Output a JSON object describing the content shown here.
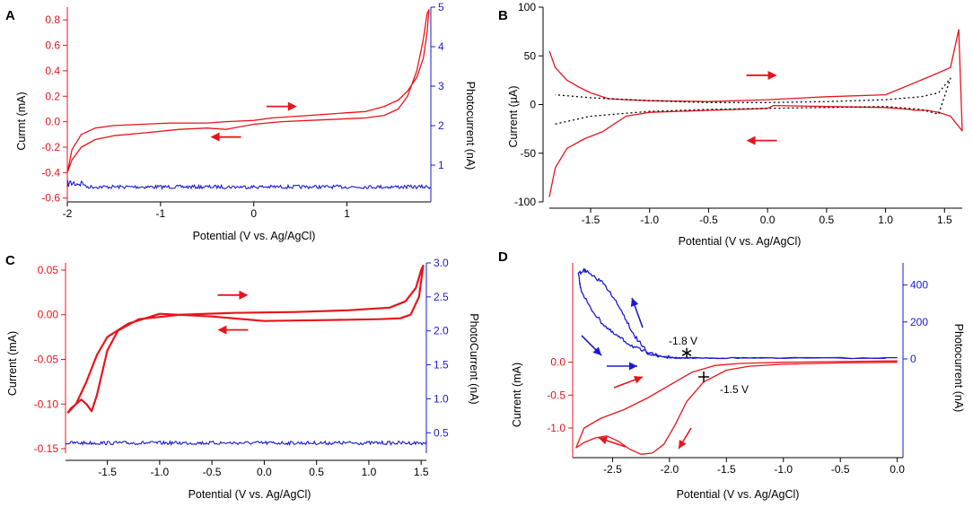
{
  "colors": {
    "red": "#e8141b",
    "blue": "#1a1ad2",
    "black": "#000000"
  },
  "chart_data": [
    {
      "id": "A",
      "type": "line",
      "panel_label": "A",
      "xlabel": "Potential (V vs. Ag/AgCl)",
      "ylabel_left": "Currnt (mA)",
      "ylabel_right": "Photocurrent (nA)",
      "xlim": [
        -2.0,
        1.9
      ],
      "ylim_left": [
        -0.63,
        0.9
      ],
      "ylim_right": [
        0.07,
        5.0
      ],
      "xticks": [
        "-2",
        "-1",
        "0",
        "1"
      ],
      "xtick_values": [
        -2,
        -1,
        0,
        1
      ],
      "yticks_left": [
        "-0.6",
        "-0.4",
        "-0.2",
        "0.0",
        "0.2",
        "0.4",
        "0.6",
        "0.8"
      ],
      "ytick_values_left": [
        -0.6,
        -0.4,
        -0.2,
        0.0,
        0.2,
        0.4,
        0.6,
        0.8
      ],
      "yticks_right": [
        "1",
        "2",
        "3",
        "4",
        "5"
      ],
      "ytick_values_right": [
        1,
        2,
        3,
        4,
        5
      ],
      "series": [
        {
          "name": "Current",
          "axis": "left",
          "color": "red",
          "x": [
            -2.0,
            -1.95,
            -1.85,
            -1.7,
            -1.5,
            -1.2,
            -0.8,
            -0.5,
            -0.3,
            0.0,
            0.3,
            0.6,
            0.9,
            1.2,
            1.4,
            1.55,
            1.65,
            1.75,
            1.82,
            1.86,
            1.88,
            1.86,
            1.82,
            1.75,
            1.65,
            1.55,
            1.4,
            1.3,
            1.2,
            1.0,
            0.6,
            0.2,
            0.0,
            -0.3,
            -0.5,
            -0.7,
            -0.9,
            -1.2,
            -1.5,
            -1.7,
            -1.85,
            -1.95,
            -2.0
          ],
          "y": [
            -0.4,
            -0.3,
            -0.2,
            -0.14,
            -0.11,
            -0.09,
            -0.06,
            -0.05,
            -0.06,
            -0.02,
            0.0,
            0.01,
            0.02,
            0.03,
            0.05,
            0.1,
            0.2,
            0.4,
            0.65,
            0.85,
            0.88,
            0.7,
            0.5,
            0.35,
            0.24,
            0.17,
            0.12,
            0.1,
            0.08,
            0.07,
            0.05,
            0.03,
            0.01,
            0.0,
            -0.01,
            -0.01,
            -0.01,
            -0.02,
            -0.03,
            -0.05,
            -0.1,
            -0.22,
            -0.4
          ]
        },
        {
          "name": "Photocurrent",
          "axis": "right",
          "color": "blue",
          "noise_level": 0.45,
          "baseline_value": 0.45
        }
      ],
      "annotations": [
        {
          "type": "arrow",
          "direction": "right",
          "x": 0.3,
          "y": 0.12
        },
        {
          "type": "arrow",
          "direction": "left",
          "x": -0.3,
          "y": -0.12
        }
      ]
    },
    {
      "id": "B",
      "type": "line",
      "panel_label": "B",
      "xlabel": "Potential (V vs. Ag/AgCl)",
      "ylabel_left": "Current (µA)",
      "xlim": [
        -1.85,
        1.65
      ],
      "ylim_left": [
        -100,
        100
      ],
      "xticks": [
        "-1.5",
        "-1.0",
        "-0.5",
        "0.0",
        "0.5",
        "1.0",
        "1.5"
      ],
      "xtick_values": [
        -1.5,
        -1.0,
        -0.5,
        0.0,
        0.5,
        1.0,
        1.5
      ],
      "yticks_left": [
        "-100",
        "-50",
        "0",
        "50",
        "100"
      ],
      "ytick_values_left": [
        -100,
        -50,
        0,
        50,
        100
      ],
      "series": [
        {
          "name": "CV",
          "axis": "left",
          "color": "red",
          "x": [
            -1.85,
            -1.8,
            -1.7,
            -1.55,
            -1.4,
            -1.2,
            -1.0,
            -0.5,
            0.0,
            0.05,
            0.5,
            1.0,
            1.1,
            1.2,
            1.25,
            1.3,
            1.35,
            1.4,
            1.45,
            1.55,
            1.65,
            1.62,
            1.55,
            1.4,
            1.0,
            0.5,
            0.0,
            -0.5,
            -1.0,
            -1.2,
            -1.35,
            -1.4,
            -1.5,
            -1.6,
            -1.7,
            -1.8,
            -1.85
          ],
          "y": [
            -95,
            -65,
            -45,
            -35,
            -28,
            -12,
            -8,
            -6,
            -4,
            -1,
            -2,
            -3,
            -4,
            -5,
            -6,
            -6,
            -6,
            -7,
            -8,
            -12,
            -27,
            77,
            38,
            30,
            10,
            8,
            5,
            3,
            4,
            5,
            6,
            8,
            12,
            18,
            25,
            38,
            55
          ]
        },
        {
          "name": "Background",
          "axis": "left",
          "color": "black",
          "dashed": true,
          "x": [
            -1.8,
            -1.5,
            -1.0,
            -0.5,
            0.0,
            0.5,
            1.0,
            1.3,
            1.45,
            1.55,
            1.45,
            1.3,
            1.0,
            0.5,
            0.0,
            -0.5,
            -1.0,
            -1.5,
            -1.8
          ],
          "y": [
            -20,
            -12,
            -7,
            -5,
            -4,
            -3,
            -2,
            -5,
            -10,
            27,
            12,
            8,
            5,
            3,
            2,
            2,
            4,
            7,
            10
          ]
        }
      ],
      "annotations": [
        {
          "type": "arrow",
          "direction": "right",
          "x": -0.05,
          "y": 30
        },
        {
          "type": "arrow",
          "direction": "left",
          "x": -0.05,
          "y": -37
        }
      ]
    },
    {
      "id": "C",
      "type": "line",
      "panel_label": "C",
      "xlabel": "Potential (V vs. Ag/AgCl)",
      "ylabel_left": "Current (mA)",
      "ylabel_right": "PhotoCurrent (nA)",
      "xlim": [
        -1.9,
        1.55
      ],
      "ylim_left": [
        -0.155,
        0.058
      ],
      "ylim_right": [
        0.2,
        3.0
      ],
      "xticks": [
        "-1.5",
        "-1.0",
        "-0.5",
        "0.0",
        "0.5",
        "1.0",
        "1.5"
      ],
      "xtick_values": [
        -1.5,
        -1.0,
        -0.5,
        0.0,
        0.5,
        1.0,
        1.5
      ],
      "yticks_left": [
        "-0.15",
        "-0.10",
        "-0.05",
        "0.00",
        "0.05"
      ],
      "ytick_values_left": [
        -0.15,
        -0.1,
        -0.05,
        0.0,
        0.05
      ],
      "yticks_right": [
        "0.5",
        "1.0",
        "1.5",
        "2.0",
        "2.5",
        "3.0"
      ],
      "ytick_values_right": [
        0.5,
        1.0,
        1.5,
        2.0,
        2.5,
        3.0
      ],
      "series": [
        {
          "name": "Current",
          "axis": "left",
          "color": "red",
          "x": [
            -1.88,
            -1.85,
            -1.8,
            -1.75,
            -1.7,
            -1.65,
            -1.6,
            -1.5,
            -1.4,
            -1.2,
            -0.8,
            -0.3,
            0.3,
            0.8,
            1.2,
            1.35,
            1.45,
            1.5,
            1.52,
            1.48,
            1.4,
            1.3,
            1.1,
            0.6,
            0.0,
            -0.5,
            -1.0,
            -1.3,
            -1.5,
            -1.6,
            -1.7,
            -1.8,
            -1.88
          ],
          "y": [
            -0.11,
            -0.105,
            -0.1,
            -0.095,
            -0.1,
            -0.108,
            -0.09,
            -0.04,
            -0.018,
            -0.005,
            0.0,
            0.002,
            0.003,
            0.005,
            0.008,
            0.015,
            0.03,
            0.05,
            0.055,
            0.02,
            0.0,
            -0.004,
            -0.005,
            -0.006,
            -0.007,
            -0.002,
            0.001,
            -0.01,
            -0.025,
            -0.045,
            -0.075,
            -0.1,
            -0.11
          ]
        },
        {
          "name": "Photocurrent",
          "axis": "right",
          "color": "blue",
          "noise_level": 0.35,
          "baseline_value": 0.35
        }
      ],
      "annotations": [
        {
          "type": "arrow",
          "direction": "right",
          "x": -0.3,
          "y": 0.022
        },
        {
          "type": "arrow",
          "direction": "left",
          "x": -0.3,
          "y": -0.017
        }
      ]
    },
    {
      "id": "D",
      "type": "line",
      "panel_label": "D",
      "xlabel": "Potential (V vs. Ag/AgCl)",
      "ylabel_left": "Current (mA)",
      "ylabel_right": "Photocurrent (nA)",
      "xlim": [
        -2.85,
        0.05
      ],
      "xticks": [
        "-2.5",
        "-2.0",
        "-1.5",
        "-1.0",
        "-0.5",
        "0.0"
      ],
      "xtick_values": [
        -2.5,
        -2.0,
        -1.5,
        -1.0,
        -0.5,
        0.0
      ],
      "yticks_left": [
        "-1.0",
        "-0.5",
        "0.0"
      ],
      "ytick_values_left": [
        -1.0,
        -0.5,
        0.0
      ],
      "ylim_left": [
        -1.45,
        0.1
      ],
      "yticks_right": [
        "0",
        "200",
        "400"
      ],
      "ytick_values_right": [
        0,
        200,
        400
      ],
      "ylim_right": [
        -20,
        520
      ],
      "series": [
        {
          "name": "Current",
          "axis": "left",
          "color": "red",
          "x": [
            0.0,
            -0.5,
            -1.0,
            -1.3,
            -1.5,
            -1.7,
            -1.85,
            -1.95,
            -2.05,
            -2.15,
            -2.25,
            -2.35,
            -2.45,
            -2.55,
            -2.65,
            -2.75,
            -2.82,
            -2.75,
            -2.6,
            -2.4,
            -2.2,
            -2.0,
            -1.8,
            -1.6,
            -1.4,
            -1.2,
            -1.0,
            -0.5,
            0.0
          ],
          "y": [
            0.0,
            -0.01,
            -0.03,
            -0.06,
            -0.12,
            -0.3,
            -0.6,
            -0.95,
            -1.25,
            -1.38,
            -1.4,
            -1.32,
            -1.2,
            -1.12,
            -1.15,
            -1.22,
            -1.3,
            -1.0,
            -0.85,
            -0.72,
            -0.55,
            -0.35,
            -0.15,
            -0.05,
            -0.02,
            -0.01,
            0.0,
            0.01,
            0.02
          ]
        },
        {
          "name": "Photocurrent",
          "axis": "right",
          "color": "blue",
          "x": [
            0.0,
            -1.0,
            -1.5,
            -1.8,
            -1.9,
            -2.0,
            -2.1,
            -2.2,
            -2.3,
            -2.4,
            -2.5,
            -2.6,
            -2.7,
            -2.75,
            -2.8,
            -2.78,
            -2.7,
            -2.6,
            -2.5,
            -2.4,
            -2.3,
            -2.2,
            -2.1,
            -2.0,
            -1.95,
            -1.9,
            -1.8,
            -1.5,
            -1.0,
            0.0
          ],
          "y": [
            5,
            5,
            5,
            5,
            5,
            8,
            18,
            40,
            120,
            230,
            340,
            420,
            460,
            480,
            460,
            380,
            280,
            200,
            140,
            100,
            60,
            35,
            18,
            8,
            5,
            5,
            5,
            5,
            5,
            5
          ]
        }
      ],
      "annotations": [
        {
          "type": "label",
          "text": "-1.8 V"
        },
        {
          "type": "marker",
          "symbol": "asterisk"
        },
        {
          "type": "label",
          "text": "-1.5 V"
        },
        {
          "type": "marker",
          "symbol": "plus"
        }
      ]
    }
  ]
}
